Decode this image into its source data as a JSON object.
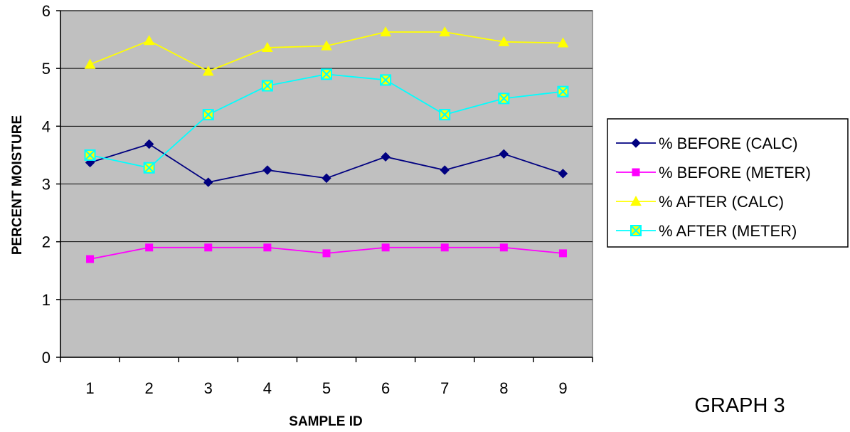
{
  "chart_data": {
    "type": "line",
    "title": "",
    "xlabel": "SAMPLE ID",
    "ylabel": "PERCENT MOISTURE",
    "categories": [
      "1",
      "2",
      "3",
      "4",
      "5",
      "6",
      "7",
      "8",
      "9"
    ],
    "ylim": [
      0,
      6
    ],
    "yticks": [
      0,
      1,
      2,
      3,
      4,
      5,
      6
    ],
    "grid": "horizontal major gridlines",
    "plot_background": "#c0c0c0",
    "legend_position": "right",
    "series": [
      {
        "name": "% BEFORE (CALC)",
        "color": "#000080",
        "marker": "diamond",
        "values": [
          3.37,
          3.69,
          3.03,
          3.24,
          3.1,
          3.47,
          3.24,
          3.52,
          3.18
        ]
      },
      {
        "name": "% BEFORE (METER)",
        "color": "#ff00ff",
        "marker": "square",
        "values": [
          1.7,
          1.9,
          1.9,
          1.9,
          1.8,
          1.9,
          1.9,
          1.9,
          1.8
        ]
      },
      {
        "name": "% AFTER (CALC)",
        "color": "#ffff00",
        "marker": "triangle",
        "values": [
          5.07,
          5.48,
          4.95,
          5.36,
          5.39,
          5.63,
          5.63,
          5.46,
          5.44
        ]
      },
      {
        "name": "% AFTER (METER)",
        "color": "#00ffff",
        "marker": "box-x",
        "values": [
          3.5,
          3.28,
          4.2,
          4.7,
          4.9,
          4.8,
          4.2,
          4.48,
          4.6
        ]
      }
    ]
  },
  "caption": "GRAPH 3"
}
